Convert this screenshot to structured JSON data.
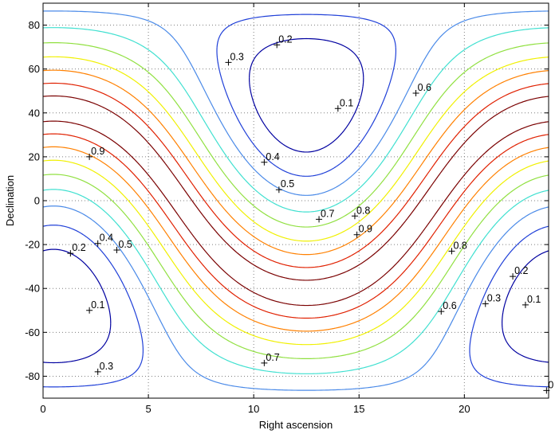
{
  "chart_data": {
    "type": "contour",
    "title": "",
    "xlabel": "Right ascension",
    "ylabel": "Declination",
    "xlim": [
      0,
      24
    ],
    "ylim": [
      -90,
      90
    ],
    "xticks": [
      0,
      5,
      10,
      15,
      20
    ],
    "xtick_labels": [
      "0",
      "5",
      "10",
      "15",
      "20"
    ],
    "yticks": [
      -80,
      -60,
      -40,
      -20,
      0,
      20,
      40,
      60,
      80
    ],
    "ytick_labels": [
      "-80",
      "-60",
      "-40",
      "-20",
      "0",
      "20",
      "40",
      "60",
      "80"
    ],
    "grid": true,
    "field": {
      "description": "scalar field on the sky; minima near (RA 12.5h, Dec +48) and (RA 0.5h, Dec -48)",
      "pole_ra_hours": 12.5,
      "pole_dec_deg": 48
    },
    "levels": [
      0.1,
      0.2,
      0.3,
      0.4,
      0.5,
      0.6,
      0.7,
      0.8,
      0.9
    ],
    "level_colors": [
      "#0000a0",
      "#2040d8",
      "#4a8ae8",
      "#40e0d0",
      "#90e040",
      "#f0f000",
      "#ff8000",
      "#e02000",
      "#7a0000"
    ],
    "labels": [
      {
        "ra": 11.1,
        "dec": 71,
        "text": "0.2"
      },
      {
        "ra": 8.8,
        "dec": 63,
        "text": "0.3"
      },
      {
        "ra": 14.0,
        "dec": 42,
        "text": "0.1"
      },
      {
        "ra": 17.7,
        "dec": 49,
        "text": "0.6"
      },
      {
        "ra": 2.2,
        "dec": 20,
        "text": "0.9"
      },
      {
        "ra": 10.5,
        "dec": 17.5,
        "text": "0.4"
      },
      {
        "ra": 11.2,
        "dec": 5,
        "text": "0.5"
      },
      {
        "ra": 13.1,
        "dec": -8.5,
        "text": "0.7"
      },
      {
        "ra": 14.8,
        "dec": -7,
        "text": "0.8"
      },
      {
        "ra": 14.9,
        "dec": -15.5,
        "text": "0.9"
      },
      {
        "ra": 2.6,
        "dec": -19.5,
        "text": "0.4"
      },
      {
        "ra": 1.3,
        "dec": -24,
        "text": "0.2"
      },
      {
        "ra": 3.5,
        "dec": -22.5,
        "text": "0.5"
      },
      {
        "ra": 19.4,
        "dec": -23,
        "text": "0.8"
      },
      {
        "ra": 22.3,
        "dec": -34.5,
        "text": "0.2"
      },
      {
        "ra": 2.2,
        "dec": -50,
        "text": "0.1"
      },
      {
        "ra": 18.9,
        "dec": -50.5,
        "text": "0.6"
      },
      {
        "ra": 21.0,
        "dec": -47,
        "text": "0.3"
      },
      {
        "ra": 22.9,
        "dec": -47.5,
        "text": "0.1"
      },
      {
        "ra": 10.5,
        "dec": -74,
        "text": "0.7"
      },
      {
        "ra": 2.6,
        "dec": -78,
        "text": "0.3"
      },
      {
        "ra": 23.9,
        "dec": -86.5,
        "text": "0"
      }
    ]
  }
}
